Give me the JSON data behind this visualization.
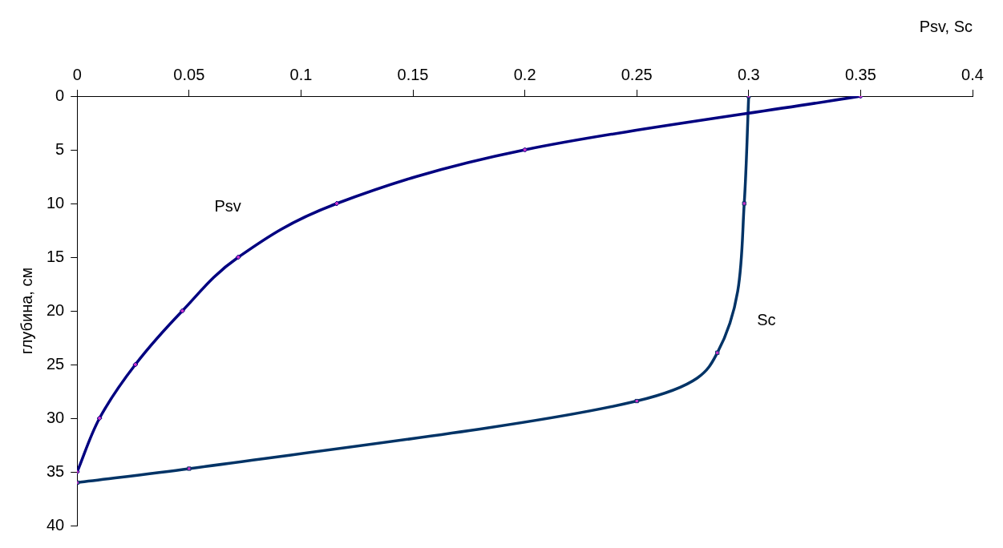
{
  "chart_data": {
    "type": "line",
    "xlabel": "Psv, Sc",
    "ylabel": "глубина, см",
    "xlim": [
      0,
      0.4
    ],
    "xticks": [
      0,
      0.05,
      0.1,
      0.15,
      0.2,
      0.25,
      0.3,
      0.35,
      0.4
    ],
    "ylim": [
      40,
      0
    ],
    "yticks": [
      0,
      5,
      10,
      15,
      20,
      25,
      30,
      35,
      40
    ],
    "grid": false,
    "legend": false,
    "series": [
      {
        "name": "Psv",
        "color": "#000080",
        "marker": "diamond",
        "x": [
          0.35,
          0.2,
          0.116,
          0.072,
          0.047,
          0.026,
          0.01,
          0
        ],
        "values": [
          0,
          5,
          10,
          15,
          20,
          25,
          30,
          35
        ]
      },
      {
        "name": "Sc",
        "color": "#003366",
        "marker": "square",
        "x": [
          0.3,
          0.298,
          0.286,
          0.25,
          0.05,
          0
        ],
        "values": [
          0,
          10,
          23.9,
          28.4,
          34.7,
          36
        ]
      }
    ]
  }
}
